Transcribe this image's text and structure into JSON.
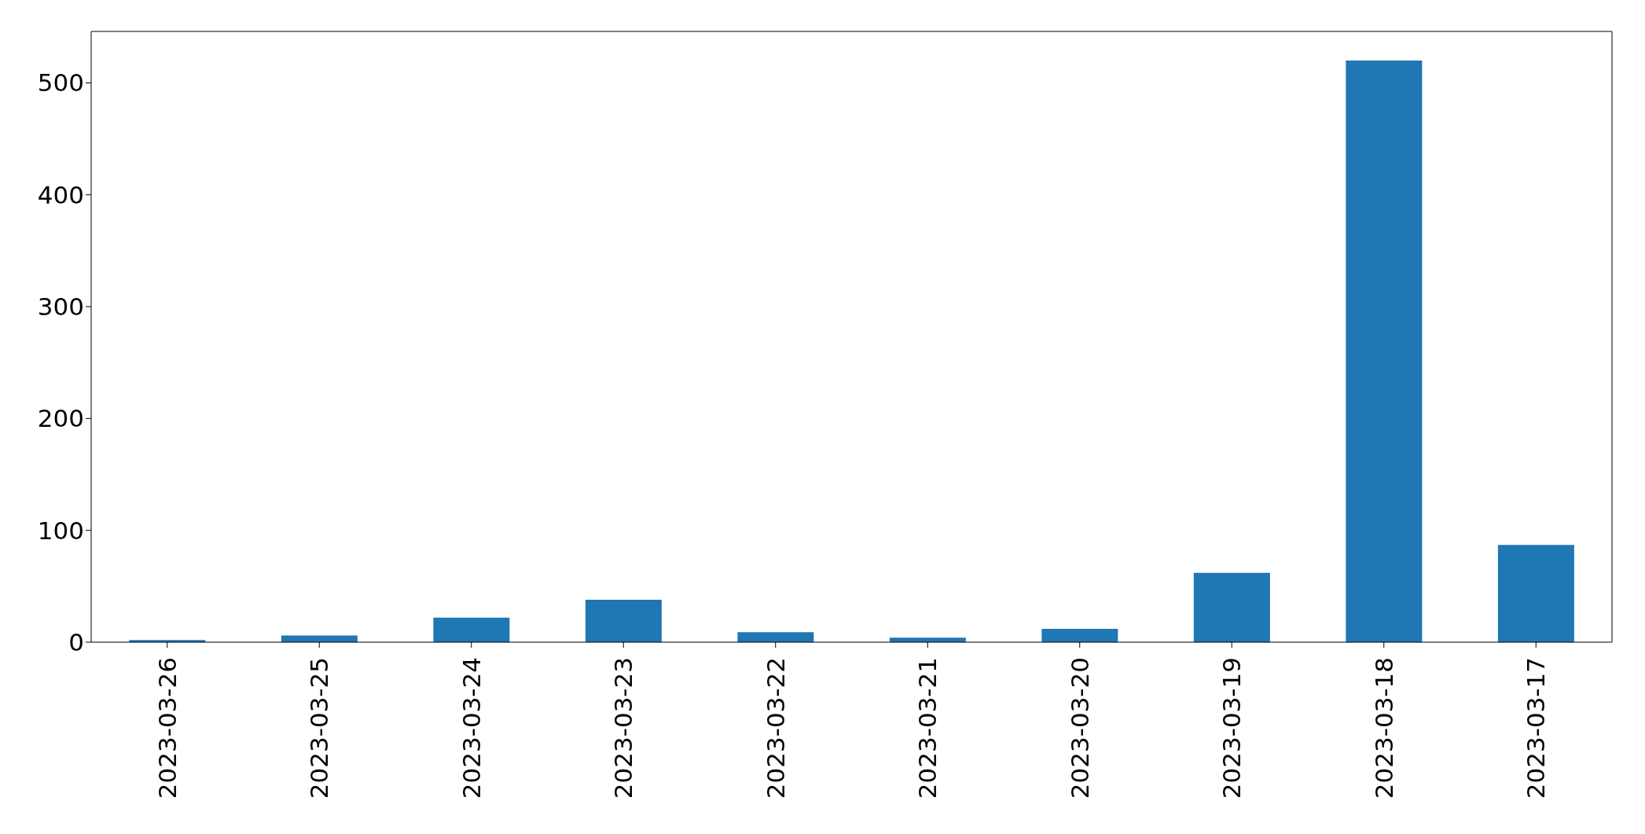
{
  "chart_data": {
    "type": "bar",
    "categories": [
      "2023-03-26",
      "2023-03-25",
      "2023-03-24",
      "2023-03-23",
      "2023-03-22",
      "2023-03-21",
      "2023-03-20",
      "2023-03-19",
      "2023-03-18",
      "2023-03-17"
    ],
    "values": [
      2,
      6,
      22,
      38,
      9,
      4,
      12,
      62,
      520,
      87
    ],
    "color": "#1f77b4",
    "ylim": [
      0,
      546
    ],
    "yticks": [
      0,
      100,
      200,
      300,
      400,
      500
    ]
  }
}
